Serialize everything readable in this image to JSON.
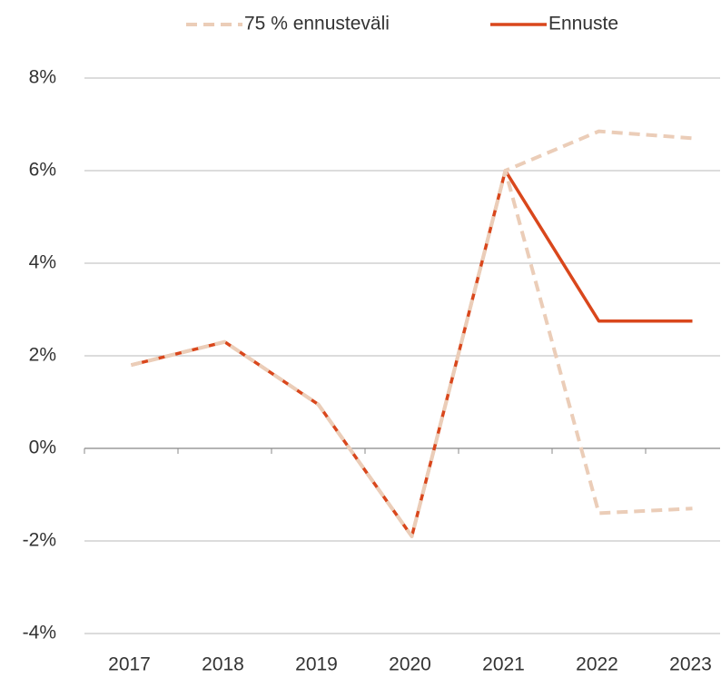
{
  "chart_data": {
    "type": "line",
    "categories": [
      "2017",
      "2018",
      "2019",
      "2020",
      "2021",
      "2022",
      "2023"
    ],
    "series": [
      {
        "name": "75 % ennusteväli",
        "color": "#ebcdb8",
        "dashed": true,
        "upper": [
          1.8,
          2.3,
          0.95,
          -1.9,
          6.0,
          6.85,
          6.7
        ],
        "lower": [
          1.8,
          2.3,
          0.95,
          -1.9,
          6.0,
          -1.4,
          -1.3
        ]
      },
      {
        "name": "Ennuste",
        "color": "#d9471c",
        "dashed": false,
        "values": [
          1.8,
          2.3,
          0.95,
          -1.9,
          6.0,
          2.75,
          2.75
        ]
      }
    ],
    "ylim": [
      -4,
      8
    ],
    "yticks": [
      {
        "value": -4,
        "label": "-4%"
      },
      {
        "value": -2,
        "label": "-2%"
      },
      {
        "value": 0,
        "label": "0%"
      },
      {
        "value": 2,
        "label": "2%"
      },
      {
        "value": 4,
        "label": "4%"
      },
      {
        "value": 6,
        "label": "6%"
      },
      {
        "value": 8,
        "label": "8%"
      }
    ],
    "grid": true,
    "legend": "top"
  }
}
